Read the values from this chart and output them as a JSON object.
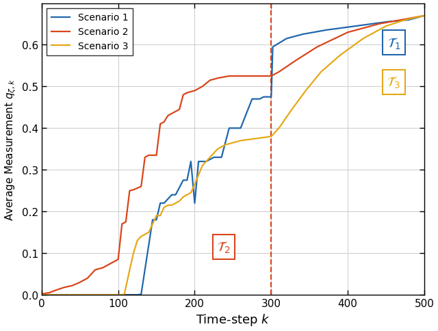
{
  "title": "",
  "xlabel": "Time-step $k$",
  "ylabel": "Average Measurement $q_{\\zeta,k}$",
  "xlim": [
    0,
    500
  ],
  "ylim": [
    0,
    0.7
  ],
  "yticks": [
    0.0,
    0.1,
    0.2,
    0.3,
    0.4,
    0.5,
    0.6
  ],
  "xticks": [
    0,
    100,
    200,
    300,
    400,
    500
  ],
  "vline_x": 300,
  "vline_color": "#d9451a",
  "scenario1_color": "#2166ac",
  "scenario2_color": "#d9451a",
  "scenario3_color": "#e6a817",
  "T1_box_color": "#2166ac",
  "T2_box_color": "#d9451a",
  "T3_box_color": "#e6a817",
  "linewidth": 1.6,
  "grid_color": "#d0d0d0",
  "background_color": "#ffffff",
  "legend_labels": [
    "Scenario 1",
    "Scenario 2",
    "Scenario 3"
  ]
}
